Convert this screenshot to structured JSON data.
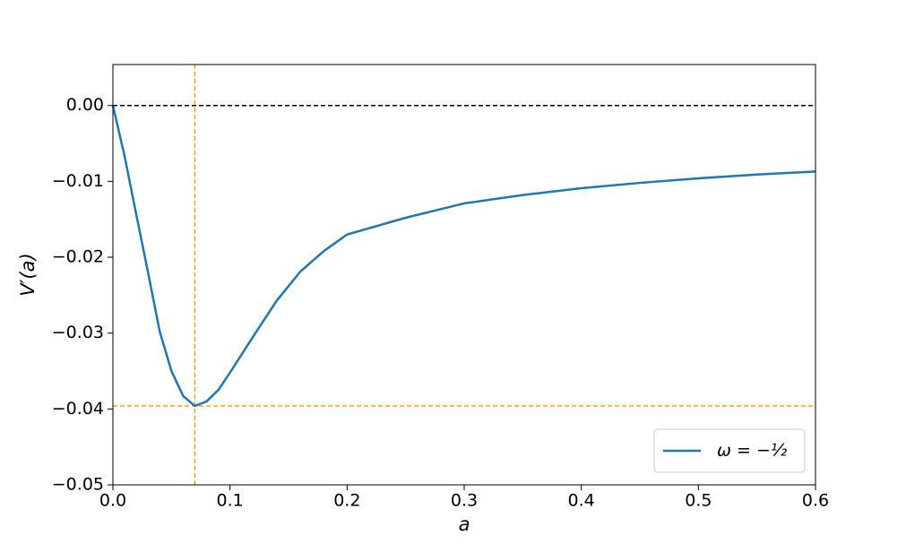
{
  "chart_data": {
    "type": "line",
    "x_label": "a",
    "y_label": "V′(a)",
    "x": [
      0,
      0.01,
      0.02,
      0.03,
      0.04,
      0.05,
      0.06,
      0.07,
      0.08,
      0.09,
      0.1,
      0.12,
      0.14,
      0.16,
      0.18,
      0.2,
      0.25,
      0.3,
      0.35,
      0.4,
      0.45,
      0.5,
      0.55,
      0.6
    ],
    "series": [
      {
        "name": "ω = −½",
        "color": "#1f77b4",
        "values": [
          0,
          -0.0067,
          -0.0144,
          -0.022,
          -0.0298,
          -0.035,
          -0.0383,
          -0.0396,
          -0.039,
          -0.0375,
          -0.0352,
          -0.0304,
          -0.0257,
          -0.0219,
          -0.0192,
          -0.017,
          -0.0148,
          -0.0129,
          -0.0118,
          -0.0109,
          -0.0102,
          -0.0096,
          -0.0091,
          -0.0087
        ]
      }
    ],
    "hlines": [
      {
        "value": 0,
        "color": "#000000"
      },
      {
        "value": -0.0396,
        "color": "#ffa500"
      }
    ],
    "vlines": [
      {
        "value": 0.07,
        "color": "#ffa500"
      }
    ],
    "xlim": [
      0,
      0.6
    ],
    "ylim": [
      -0.05,
      0.0054
    ],
    "xticks": [
      {
        "value": 0,
        "label": "0.0"
      },
      0.1,
      0.2,
      0.3,
      0.4,
      0.5,
      0.6
    ],
    "yticks": [
      {
        "value": -0.05,
        "label": "−0.05"
      },
      {
        "value": -0.04,
        "label": "−0.04"
      },
      {
        "value": -0.03,
        "label": "−0.03"
      },
      {
        "value": -0.02,
        "label": "−0.02"
      },
      {
        "value": -0.01,
        "label": "−0.01"
      },
      {
        "value": 0,
        "label": "0.00"
      }
    ],
    "legend": "lower right"
  }
}
